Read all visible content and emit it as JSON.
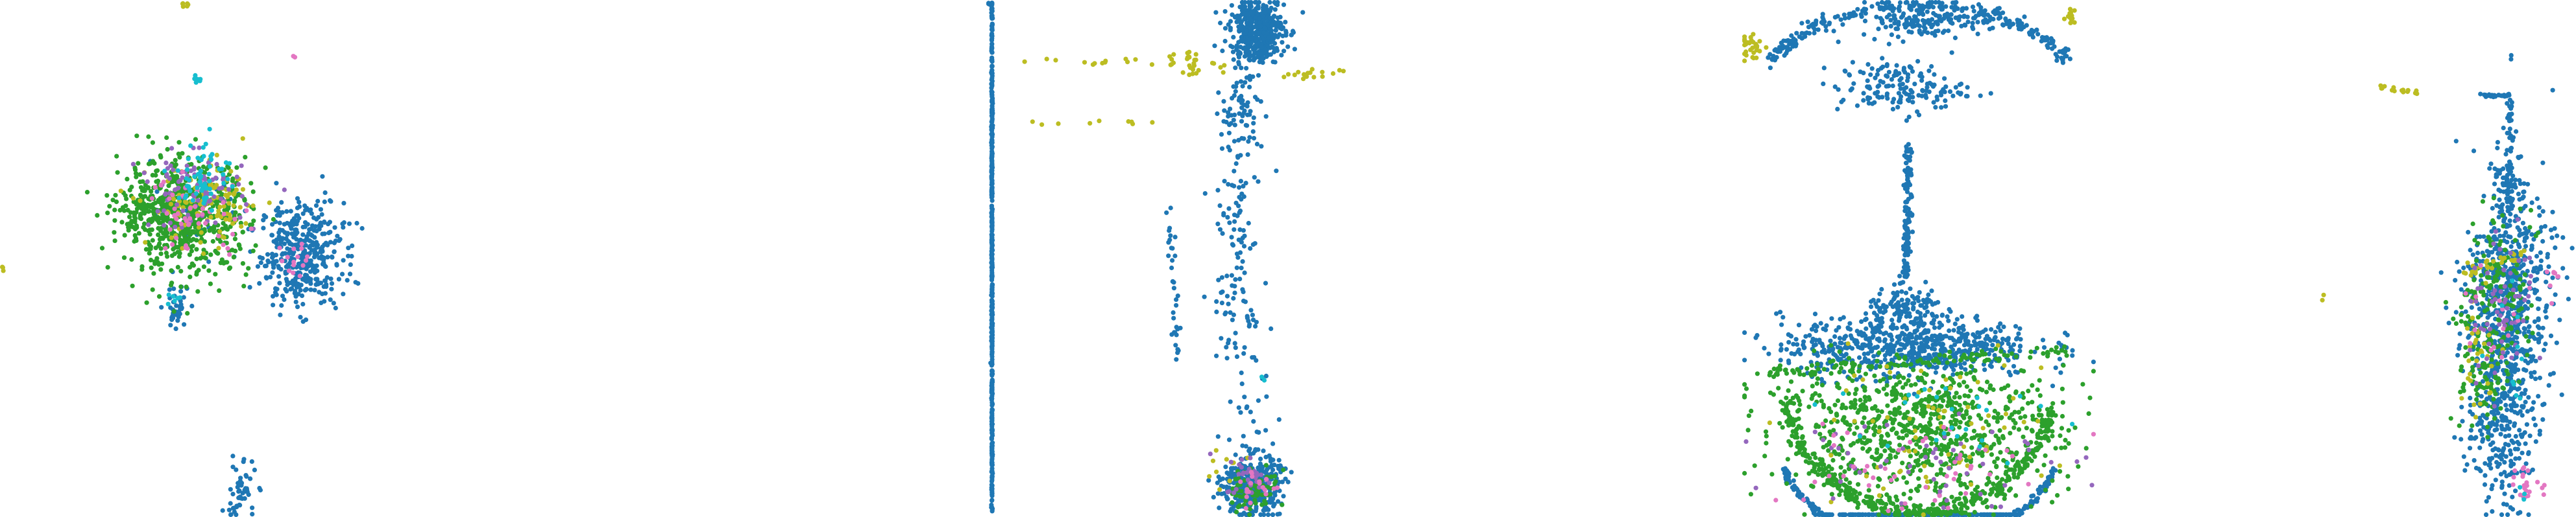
{
  "palette": {
    "blue": "#1f77b4",
    "green": "#2ca02c",
    "olive": "#bcbd22",
    "pink": "#e377c2",
    "cyan": "#17becf",
    "purple": "#9467bd"
  },
  "chart_data": [
    {
      "type": "scatter",
      "title": "",
      "xlabel": "",
      "ylabel": "",
      "xlim": [
        0,
        100
      ],
      "ylim": [
        0,
        100
      ],
      "grid": false,
      "legend": "none",
      "series": [
        {
          "color": "blue",
          "clusters": [
            {
              "cx": 46.5,
              "cy": 51,
              "sx": 3.2,
              "sy": 5.0,
              "n": 420
            },
            {
              "cx": 27.0,
              "cy": 40,
              "sx": 1.0,
              "sy": 2.5,
              "n": 40
            },
            {
              "cx": 37.0,
              "cy": 5,
              "sx": 1.2,
              "sy": 3.0,
              "n": 50
            },
            {
              "cx": 30.0,
              "cy": 60,
              "sx": 4.0,
              "sy": 4.0,
              "n": 30
            }
          ]
        },
        {
          "color": "green",
          "clusters": [
            {
              "cx": 28.5,
              "cy": 58,
              "sx": 5.0,
              "sy": 5.5,
              "n": 650
            },
            {
              "cx": 23.0,
              "cy": 60,
              "sx": 2.0,
              "sy": 1.5,
              "n": 80
            }
          ]
        },
        {
          "color": "olive",
          "clusters": [
            {
              "cx": 32.0,
              "cy": 60,
              "sx": 4.5,
              "sy": 4.0,
              "n": 110
            },
            {
              "cx": 28.5,
              "cy": 99,
              "sx": 0.4,
              "sy": 0.4,
              "n": 6
            },
            {
              "cx": 0.3,
              "cy": 48,
              "sx": 0.2,
              "sy": 0.5,
              "n": 3
            }
          ]
        },
        {
          "color": "purple",
          "clusters": [
            {
              "cx": 29.5,
              "cy": 63,
              "sx": 4.0,
              "sy": 3.5,
              "n": 90
            }
          ]
        },
        {
          "color": "pink",
          "clusters": [
            {
              "cx": 30.0,
              "cy": 58,
              "sx": 4.0,
              "sy": 4.0,
              "n": 50
            },
            {
              "cx": 46.0,
              "cy": 51,
              "sx": 1.5,
              "sy": 2.0,
              "n": 15
            },
            {
              "cx": 45.0,
              "cy": 89,
              "sx": 0.2,
              "sy": 0.2,
              "n": 2
            }
          ]
        },
        {
          "color": "cyan",
          "clusters": [
            {
              "cx": 31.5,
              "cy": 66,
              "sx": 2.0,
              "sy": 3.5,
              "n": 60
            },
            {
              "cx": 30.5,
              "cy": 85,
              "sx": 0.3,
              "sy": 0.6,
              "n": 6
            },
            {
              "cx": 27.0,
              "cy": 42,
              "sx": 0.6,
              "sy": 0.8,
              "n": 6
            }
          ]
        }
      ]
    },
    {
      "type": "scatter",
      "title": "",
      "xlabel": "",
      "ylabel": "",
      "xlim": [
        0,
        100
      ],
      "ylim": [
        0,
        100
      ],
      "grid": false,
      "legend": "none",
      "series": [
        {
          "color": "blue",
          "lines": [
            {
              "x1": 1.0,
              "y1": 0.5,
              "x2": 1.0,
              "y2": 99.5,
              "n": 500,
              "jitter": 0.05
            },
            {
              "x1": -0.5,
              "y1": 99.3,
              "x2": 1.0,
              "y2": 99.3,
              "n": 10,
              "jitter": 0.05
            },
            {
              "x1": 45.0,
              "y1": 90,
              "x2": 42.0,
              "y2": 30,
              "n": 100,
              "jitter": 1.8
            },
            {
              "x1": 44.0,
              "y1": 65,
              "x2": 46.0,
              "y2": 15,
              "n": 60,
              "jitter": 1.5
            },
            {
              "x1": 32.0,
              "y1": 60,
              "x2": 33.5,
              "y2": 28,
              "n": 35,
              "jitter": 0.4
            }
          ],
          "clusters": [
            {
              "cx": 47.5,
              "cy": 94,
              "sx": 2.4,
              "sy": 3.0,
              "n": 450
            },
            {
              "cx": 46.5,
              "cy": 6,
              "sx": 2.5,
              "sy": 3.0,
              "n": 380
            },
            {
              "cx": 45.0,
              "cy": 76,
              "sx": 2.5,
              "sy": 4.0,
              "n": 40
            },
            {
              "cx": 46.0,
              "cy": 38,
              "sx": 1.0,
              "sy": 1.5,
              "n": 6
            }
          ]
        },
        {
          "color": "green",
          "clusters": [
            {
              "cx": 47.0,
              "cy": 5,
              "sx": 2.0,
              "sy": 2.0,
              "n": 70
            }
          ]
        },
        {
          "color": "olive",
          "lines": [
            {
              "x1": 5.0,
              "y1": 88,
              "x2": 40.0,
              "y2": 88,
              "n": 18,
              "jitter": 0.4
            },
            {
              "x1": 5.0,
              "y1": 76,
              "x2": 30.0,
              "y2": 76.5,
              "n": 9,
              "jitter": 0.3
            },
            {
              "x1": 51.5,
              "y1": 85,
              "x2": 64.0,
              "y2": 86,
              "n": 16,
              "jitter": 0.5
            }
          ],
          "clusters": [
            {
              "cx": 36.0,
              "cy": 88,
              "sx": 2.0,
              "sy": 1.5,
              "n": 25
            },
            {
              "cx": 42.0,
              "cy": 10,
              "sx": 1.5,
              "sy": 2.0,
              "n": 10
            }
          ]
        },
        {
          "color": "purple",
          "clusters": [
            {
              "cx": 46.0,
              "cy": 8,
              "sx": 2.0,
              "sy": 2.0,
              "n": 30
            }
          ]
        },
        {
          "color": "pink",
          "clusters": [
            {
              "cx": 47.5,
              "cy": 6,
              "sx": 2.0,
              "sy": 2.0,
              "n": 20
            }
          ]
        },
        {
          "color": "cyan",
          "clusters": [
            {
              "cx": 48.5,
              "cy": 27,
              "sx": 0.3,
              "sy": 0.3,
              "n": 2
            }
          ]
        }
      ]
    },
    {
      "type": "scatter",
      "title": "",
      "xlabel": "",
      "ylabel": "",
      "xlim": [
        0,
        100
      ],
      "ylim": [
        0,
        100
      ],
      "grid": false,
      "legend": "none",
      "series": [
        {
          "color": "blue",
          "arcs": [
            {
              "cx": 50.0,
              "cy": 83,
              "rx": 44,
              "ry": 16,
              "a0": 20,
              "a1": 160,
              "n": 260,
              "jitter": 0.8
            },
            {
              "cx": 50.0,
              "cy": 18,
              "rx": 41,
              "ry": 24,
              "a0": 200,
              "a1": 340,
              "n": 320,
              "jitter": 0.4
            }
          ],
          "lines": [
            {
              "x1": 47.0,
              "y1": 72,
              "x2": 46.5,
              "y2": 45,
              "n": 120,
              "jitter": 0.5
            }
          ],
          "clusters": [
            {
              "cx": 51.0,
              "cy": 96,
              "sx": 9.0,
              "sy": 1.5,
              "n": 140
            },
            {
              "cx": 45.0,
              "cy": 83,
              "sx": 9.0,
              "sy": 2.5,
              "n": 160
            },
            {
              "cx": 47.0,
              "cy": 33,
              "sx": 18.0,
              "sy": 3.0,
              "n": 650
            },
            {
              "cx": 47.0,
              "cy": 40,
              "sx": 6.0,
              "sy": 2.0,
              "n": 120
            }
          ]
        },
        {
          "color": "green",
          "arcs": [
            {
              "cx": 50.0,
              "cy": 28,
              "rx": 39,
              "ry": 27,
              "a0": 195,
              "a1": 345,
              "n": 420,
              "jitter": 0.9
            }
          ],
          "lines": [
            {
              "x1": 8.0,
              "y1": 28,
              "x2": 92.0,
              "y2": 32,
              "n": 120,
              "jitter": 0.6
            }
          ],
          "clusters": [
            {
              "cx": 50.0,
              "cy": 15,
              "sx": 20.0,
              "sy": 6.0,
              "n": 620
            },
            {
              "cx": 50.0,
              "cy": 23,
              "sx": 22.0,
              "sy": 3.0,
              "n": 200
            }
          ]
        },
        {
          "color": "olive",
          "clusters": [
            {
              "cx": 3.0,
              "cy": 91,
              "sx": 1.8,
              "sy": 1.5,
              "n": 30
            },
            {
              "cx": 50.0,
              "cy": 17,
              "sx": 18.0,
              "sy": 7.0,
              "n": 70
            },
            {
              "cx": 93.0,
              "cy": 97,
              "sx": 0.8,
              "sy": 1.0,
              "n": 12
            }
          ]
        },
        {
          "color": "purple",
          "clusters": [
            {
              "cx": 50.0,
              "cy": 12,
              "sx": 18.0,
              "sy": 5.0,
              "n": 55
            }
          ]
        },
        {
          "color": "pink",
          "clusters": [
            {
              "cx": 45.0,
              "cy": 10,
              "sx": 20.0,
              "sy": 5.0,
              "n": 45
            }
          ]
        },
        {
          "color": "cyan",
          "clusters": [
            {
              "cx": 52.0,
              "cy": 18,
              "sx": 16.0,
              "sy": 6.0,
              "n": 25
            }
          ]
        }
      ]
    },
    {
      "type": "scatter",
      "title": "",
      "xlabel": "",
      "ylabel": "",
      "xlim": [
        0,
        100
      ],
      "ylim": [
        0,
        100
      ],
      "grid": false,
      "legend": "none",
      "series": [
        {
          "color": "blue",
          "lines": [
            {
              "x1": 64.0,
              "y1": 81.5,
              "x2": 75.0,
              "y2": 81.5,
              "n": 30,
              "jitter": 0.15
            },
            {
              "x1": 75.0,
              "y1": 81.5,
              "x2": 75.0,
              "y2": 60.0,
              "n": 45,
              "jitter": 0.6
            }
          ],
          "clusters": [
            {
              "cx": 75.0,
              "cy": 44,
              "sx": 8.5,
              "sy": 9.0,
              "n": 480
            },
            {
              "cx": 72.0,
              "cy": 22,
              "sx": 6.5,
              "sy": 10.0,
              "n": 380
            },
            {
              "cx": 75.0,
              "cy": 64,
              "sx": 3.0,
              "sy": 5.0,
              "n": 80
            },
            {
              "cx": 76.0,
              "cy": 89,
              "sx": 0.3,
              "sy": 0.4,
              "n": 2
            }
          ]
        },
        {
          "color": "green",
          "clusters": [
            {
              "cx": 70.0,
              "cy": 42,
              "sx": 6.5,
              "sy": 8.0,
              "n": 170
            },
            {
              "cx": 65.0,
              "cy": 26,
              "sx": 4.0,
              "sy": 6.0,
              "n": 60
            }
          ]
        },
        {
          "color": "olive",
          "lines": [
            {
              "x1": 22.0,
              "y1": 83.5,
              "x2": 42.0,
              "y2": 82.0,
              "n": 16,
              "jitter": 0.4
            },
            {
              "x1": 58.0,
              "y1": 47.5,
              "x2": 82.0,
              "y2": 51.0,
              "n": 30,
              "jitter": 0.7
            }
          ],
          "clusters": [
            {
              "cx": 63.0,
              "cy": 32,
              "sx": 3.0,
              "sy": 6.0,
              "n": 30
            },
            {
              "cx": 5.0,
              "cy": 42,
              "sx": 0.4,
              "sy": 0.5,
              "n": 2
            }
          ]
        },
        {
          "color": "purple",
          "clusters": [
            {
              "cx": 72.0,
              "cy": 40,
              "sx": 6.0,
              "sy": 7.0,
              "n": 60
            }
          ]
        },
        {
          "color": "pink",
          "clusters": [
            {
              "cx": 81.0,
              "cy": 7,
              "sx": 2.5,
              "sy": 2.0,
              "n": 22
            },
            {
              "cx": 92.0,
              "cy": 46,
              "sx": 1.5,
              "sy": 2.0,
              "n": 8
            },
            {
              "cx": 70.0,
              "cy": 40,
              "sx": 5.0,
              "sy": 6.0,
              "n": 15
            }
          ]
        },
        {
          "color": "cyan",
          "clusters": [
            {
              "cx": 80.0,
              "cy": 5,
              "sx": 0.6,
              "sy": 0.6,
              "n": 3
            },
            {
              "cx": 75.0,
              "cy": 30,
              "sx": 4.0,
              "sy": 6.0,
              "n": 10
            }
          ]
        }
      ]
    }
  ]
}
